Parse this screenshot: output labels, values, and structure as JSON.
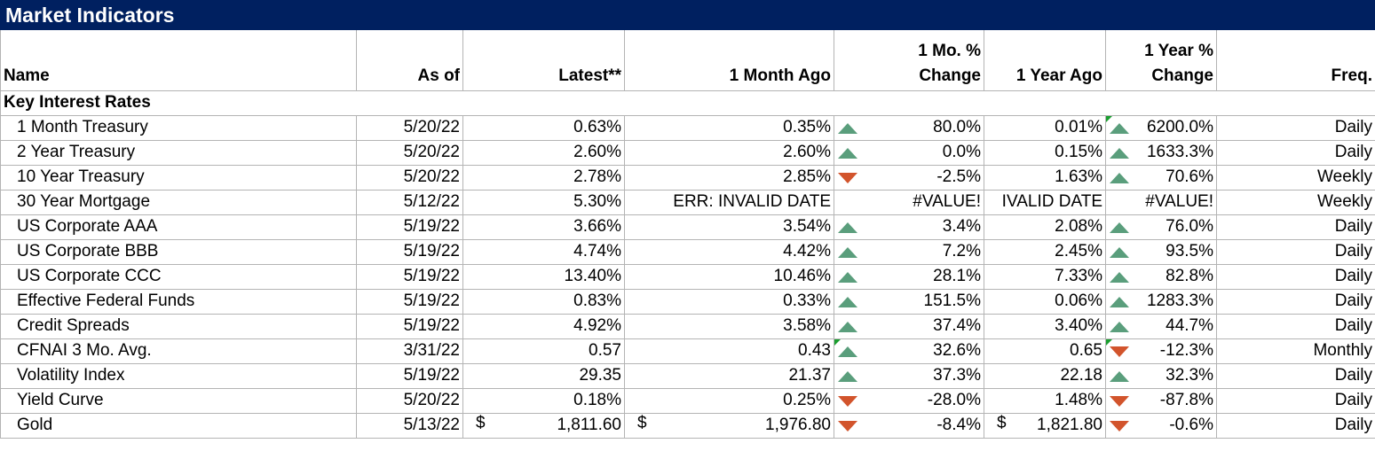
{
  "title": "Market Indicators",
  "headers": {
    "name": "Name",
    "as_of": "As of",
    "latest": "Latest**",
    "month_ago": "1 Month Ago",
    "mo_change_line1": "1 Mo. %",
    "mo_change_line2": "Change",
    "year_ago": "1 Year Ago",
    "yr_change_line1": "1 Year %",
    "yr_change_line2": "Change",
    "freq": "Freq."
  },
  "section_label": "Key Interest Rates",
  "rows": [
    {
      "name": "1 Month Treasury",
      "as_of": "5/20/22",
      "latest": "0.63%",
      "month_ago": "0.35%",
      "mo_dir": "up",
      "mo_change": "80.0%",
      "year_ago": "0.01%",
      "yr_dir": "up",
      "yr_change": "6200.0%",
      "freq": "Daily",
      "mo_flag": false,
      "yr_flag": true
    },
    {
      "name": "2 Year Treasury",
      "as_of": "5/20/22",
      "latest": "2.60%",
      "month_ago": "2.60%",
      "mo_dir": "up",
      "mo_change": "0.0%",
      "year_ago": "0.15%",
      "yr_dir": "up",
      "yr_change": "1633.3%",
      "freq": "Daily",
      "mo_flag": false,
      "yr_flag": false
    },
    {
      "name": "10 Year Treasury",
      "as_of": "5/20/22",
      "latest": "2.78%",
      "month_ago": "2.85%",
      "mo_dir": "down",
      "mo_change": "-2.5%",
      "year_ago": "1.63%",
      "yr_dir": "up",
      "yr_change": "70.6%",
      "freq": "Weekly",
      "mo_flag": false,
      "yr_flag": false
    },
    {
      "name": "30 Year Mortgage",
      "as_of": "5/12/22",
      "latest": "5.30%",
      "month_ago": "ERR: INVALID DATE",
      "mo_dir": "none",
      "mo_change": "#VALUE!",
      "year_ago": "IVALID DATE",
      "yr_dir": "none",
      "yr_change": "#VALUE!",
      "freq": "Weekly",
      "mo_flag": false,
      "yr_flag": false
    },
    {
      "name": "US Corporate AAA",
      "as_of": "5/19/22",
      "latest": "3.66%",
      "month_ago": "3.54%",
      "mo_dir": "up",
      "mo_change": "3.4%",
      "year_ago": "2.08%",
      "yr_dir": "up",
      "yr_change": "76.0%",
      "freq": "Daily",
      "mo_flag": false,
      "yr_flag": false
    },
    {
      "name": "US Corporate BBB",
      "as_of": "5/19/22",
      "latest": "4.74%",
      "month_ago": "4.42%",
      "mo_dir": "up",
      "mo_change": "7.2%",
      "year_ago": "2.45%",
      "yr_dir": "up",
      "yr_change": "93.5%",
      "freq": "Daily",
      "mo_flag": false,
      "yr_flag": false
    },
    {
      "name": "US Corporate CCC",
      "as_of": "5/19/22",
      "latest": "13.40%",
      "month_ago": "10.46%",
      "mo_dir": "up",
      "mo_change": "28.1%",
      "year_ago": "7.33%",
      "yr_dir": "up",
      "yr_change": "82.8%",
      "freq": "Daily",
      "mo_flag": false,
      "yr_flag": false
    },
    {
      "name": "Effective Federal Funds",
      "as_of": "5/19/22",
      "latest": "0.83%",
      "month_ago": "0.33%",
      "mo_dir": "up",
      "mo_change": "151.5%",
      "year_ago": "0.06%",
      "yr_dir": "up",
      "yr_change": "1283.3%",
      "freq": "Daily",
      "mo_flag": false,
      "yr_flag": false
    },
    {
      "name": "Credit Spreads",
      "as_of": "5/19/22",
      "latest": "4.92%",
      "month_ago": "3.58%",
      "mo_dir": "up",
      "mo_change": "37.4%",
      "year_ago": "3.40%",
      "yr_dir": "up",
      "yr_change": "44.7%",
      "freq": "Daily",
      "mo_flag": false,
      "yr_flag": false
    },
    {
      "name": "CFNAI 3 Mo. Avg.",
      "as_of": "3/31/22",
      "latest": "0.57",
      "month_ago": "0.43",
      "mo_dir": "up",
      "mo_change": "32.6%",
      "year_ago": "0.65",
      "yr_dir": "down",
      "yr_change": "-12.3%",
      "freq": "Monthly",
      "mo_flag": true,
      "yr_flag": true
    },
    {
      "name": "Volatility Index",
      "as_of": "5/19/22",
      "latest": "29.35",
      "month_ago": "21.37",
      "mo_dir": "up",
      "mo_change": "37.3%",
      "year_ago": "22.18",
      "yr_dir": "up",
      "yr_change": "32.3%",
      "freq": "Daily",
      "mo_flag": false,
      "yr_flag": false
    },
    {
      "name": "Yield Curve",
      "as_of": "5/20/22",
      "latest": "0.18%",
      "month_ago": "0.25%",
      "mo_dir": "down",
      "mo_change": "-28.0%",
      "year_ago": "1.48%",
      "yr_dir": "down",
      "yr_change": "-87.8%",
      "freq": "Daily",
      "mo_flag": false,
      "yr_flag": false
    },
    {
      "name": "Gold",
      "as_of": "5/13/22",
      "latest": "1,811.60",
      "month_ago": "1,976.80",
      "mo_dir": "down",
      "mo_change": "-8.4%",
      "year_ago": "1,821.80",
      "yr_dir": "down",
      "yr_change": "-0.6%",
      "freq": "Daily",
      "mo_flag": false,
      "yr_flag": false,
      "currency": "$"
    }
  ],
  "colors": {
    "title_bg": "#002060",
    "up": "#5a9e7c",
    "down": "#d2542c",
    "flag": "#1a9e2f"
  }
}
